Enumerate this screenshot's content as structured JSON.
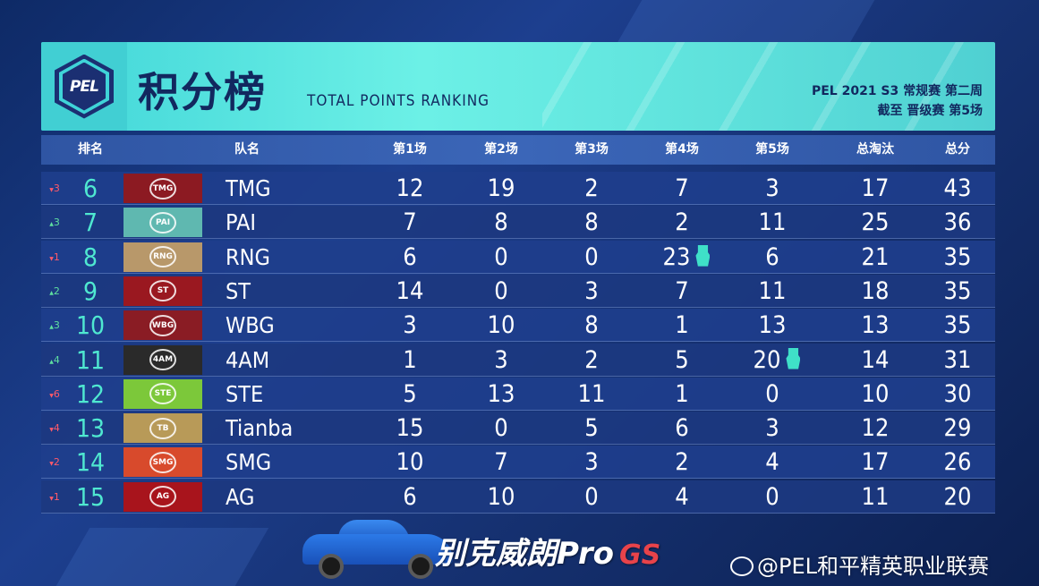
{
  "header": {
    "logo_text": "PEL",
    "title_cn": "积分榜",
    "title_en": "TOTAL POINTS RANKING",
    "subtitle_line1": "PEL 2021 S3 常规赛 第二周",
    "subtitle_line2": "截至 晋级赛 第5场"
  },
  "columns": {
    "rank": "排名",
    "team": "队名",
    "m1": "第1场",
    "m2": "第2场",
    "m3": "第3场",
    "m4": "第4场",
    "m5": "第5场",
    "elims": "总淘汰",
    "total": "总分"
  },
  "colors": {
    "rank_teal": "#4fe8d0",
    "up": "#5fe0a0",
    "down": "#ff5a6a"
  },
  "rows": [
    {
      "change": "3",
      "dir": "down",
      "rank": "6",
      "team": "TMG",
      "logo_bg": "#8c1a22",
      "logo_text": "TMG",
      "m1": "12",
      "m2": "19",
      "m3": "2",
      "m4": "7",
      "m5": "3",
      "elims": "17",
      "total": "43"
    },
    {
      "change": "3",
      "dir": "up",
      "rank": "7",
      "team": "PAI",
      "logo_bg": "#5fb8b0",
      "logo_text": "PAI",
      "m1": "7",
      "m2": "8",
      "m3": "8",
      "m4": "2",
      "m5": "11",
      "elims": "25",
      "total": "36"
    },
    {
      "change": "1",
      "dir": "down",
      "rank": "8",
      "team": "RNG",
      "logo_bg": "#b8986a",
      "logo_text": "RNG",
      "m1": "6",
      "m2": "0",
      "m3": "0",
      "m4": "23",
      "m5": "6",
      "elims": "21",
      "total": "35",
      "medal": "m4"
    },
    {
      "change": "2",
      "dir": "up",
      "rank": "9",
      "team": "ST",
      "logo_bg": "#9a1820",
      "logo_text": "ST",
      "m1": "14",
      "m2": "0",
      "m3": "3",
      "m4": "7",
      "m5": "11",
      "elims": "18",
      "total": "35"
    },
    {
      "change": "3",
      "dir": "up",
      "rank": "10",
      "team": "WBG",
      "logo_bg": "#8a1c24",
      "logo_text": "WBG",
      "m1": "3",
      "m2": "10",
      "m3": "8",
      "m4": "1",
      "m5": "13",
      "elims": "13",
      "total": "35"
    },
    {
      "change": "4",
      "dir": "up",
      "rank": "11",
      "team": "4AM",
      "logo_bg": "#2a2a2a",
      "logo_text": "4AM",
      "m1": "1",
      "m2": "3",
      "m3": "2",
      "m4": "5",
      "m5": "20",
      "elims": "14",
      "total": "31",
      "medal": "m5"
    },
    {
      "change": "6",
      "dir": "down",
      "rank": "12",
      "team": "STE",
      "logo_bg": "#7cc83a",
      "logo_text": "STE",
      "m1": "5",
      "m2": "13",
      "m3": "11",
      "m4": "1",
      "m5": "0",
      "elims": "10",
      "total": "30"
    },
    {
      "change": "4",
      "dir": "down",
      "rank": "13",
      "team": "Tianba",
      "logo_bg": "#b89a58",
      "logo_text": "TB",
      "m1": "15",
      "m2": "0",
      "m3": "5",
      "m4": "6",
      "m5": "3",
      "elims": "12",
      "total": "29"
    },
    {
      "change": "2",
      "dir": "down",
      "rank": "14",
      "team": "SMG",
      "logo_bg": "#d84a2c",
      "logo_text": "SMG",
      "m1": "10",
      "m2": "7",
      "m3": "3",
      "m4": "2",
      "m5": "4",
      "elims": "17",
      "total": "26"
    },
    {
      "change": "1",
      "dir": "down",
      "rank": "15",
      "team": "AG",
      "logo_bg": "#a8141c",
      "logo_text": "AG",
      "m1": "6",
      "m2": "10",
      "m3": "0",
      "m4": "4",
      "m5": "0",
      "elims": "11",
      "total": "20"
    }
  ],
  "sponsor": {
    "text": "别克威朗Pro",
    "brand": "GS"
  },
  "watermark": "@PEL和平精英职业联赛"
}
